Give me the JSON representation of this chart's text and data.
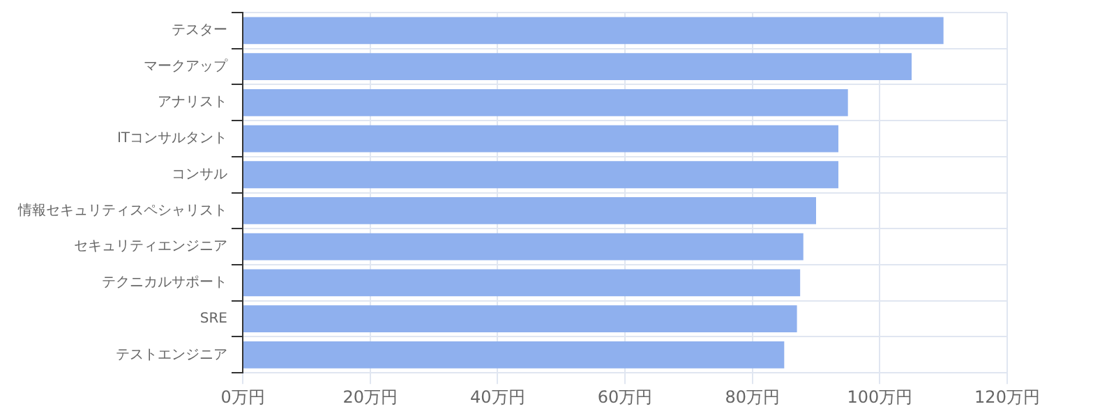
{
  "chart_data": {
    "type": "bar",
    "orientation": "horizontal",
    "categories": [
      "テスター",
      "マークアップ",
      "アナリスト",
      "ITコンサルタント",
      "コンサル",
      "情報セキュリティスペシャリスト",
      "セキュリティエンジニア",
      "テクニカルサポート",
      "SRE",
      "テストエンジニア"
    ],
    "values": [
      110,
      105,
      95,
      93.5,
      93.5,
      90,
      88,
      87.5,
      87,
      85
    ],
    "color": "#8fb0ee",
    "xlim": [
      0,
      120
    ],
    "xticks": [
      {
        "value": 0,
        "label": "0万円"
      },
      {
        "value": 20,
        "label": "20万円"
      },
      {
        "value": 40,
        "label": "40万円"
      },
      {
        "value": 60,
        "label": "60万円"
      },
      {
        "value": 80,
        "label": "80万円"
      },
      {
        "value": 100,
        "label": "100万円"
      },
      {
        "value": 120,
        "label": "120万円"
      }
    ],
    "grid": true,
    "legend": false
  }
}
